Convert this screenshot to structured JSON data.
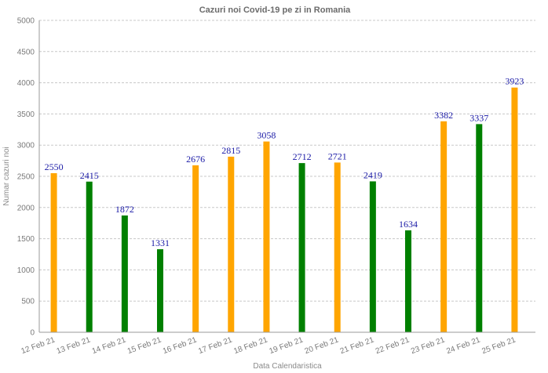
{
  "chart_data": {
    "type": "bar",
    "title": "Cazuri noi Covid-19 pe zi in Romania",
    "xlabel": "Data Calendaristica",
    "ylabel": "Numar cazuri noi",
    "ylim": [
      0,
      5000
    ],
    "yticks": [
      0,
      500,
      1000,
      1500,
      2000,
      2500,
      3000,
      3500,
      4000,
      4500,
      5000
    ],
    "grid": true,
    "categories": [
      "12 Feb 21",
      "13 Feb 21",
      "14 Feb 21",
      "15 Feb 21",
      "16 Feb 21",
      "17 Feb 21",
      "18 Feb 21",
      "19 Feb 21",
      "20 Feb 21",
      "21 Feb 21",
      "22 Feb 21",
      "23 Feb 21",
      "24 Feb 21",
      "25 Feb 21"
    ],
    "values": [
      2550,
      2415,
      1872,
      1331,
      2676,
      2815,
      3058,
      2712,
      2721,
      2419,
      1634,
      3382,
      3337,
      3923
    ],
    "colors": [
      "#ffa500",
      "#008000",
      "#008000",
      "#008000",
      "#ffa500",
      "#ffa500",
      "#ffa500",
      "#008000",
      "#ffa500",
      "#008000",
      "#008000",
      "#ffa500",
      "#008000",
      "#ffa500"
    ]
  }
}
